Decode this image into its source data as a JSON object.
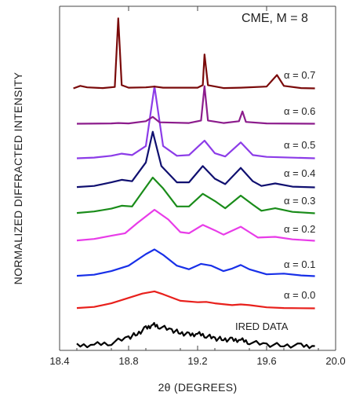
{
  "chart_data": {
    "type": "line",
    "title": "CME, M = 8",
    "xlabel": "2θ (DEGREES)",
    "ylabel": "NORMALIZED DIFFRACTED INTENSITY",
    "xlim": [
      18.4,
      20.0
    ],
    "x_ticks": [
      "18.4",
      "18.8",
      "19.2",
      "19.6",
      "20.0"
    ],
    "y_ticks_shown": false,
    "grid": false,
    "legend": "inline labels at right of each trace",
    "stacked_offset": true,
    "series": [
      {
        "name": "IRED DATA",
        "color": "#000000",
        "noisy": true,
        "points": [
          [
            18.5,
            0.02
          ],
          [
            18.6,
            0.05
          ],
          [
            18.7,
            0.1
          ],
          [
            18.8,
            0.25
          ],
          [
            18.85,
            0.35
          ],
          [
            18.9,
            0.5
          ],
          [
            18.94,
            0.6
          ],
          [
            18.98,
            0.55
          ],
          [
            19.05,
            0.45
          ],
          [
            19.1,
            0.38
          ],
          [
            19.15,
            0.32
          ],
          [
            19.2,
            0.35
          ],
          [
            19.25,
            0.3
          ],
          [
            19.3,
            0.22
          ],
          [
            19.35,
            0.2
          ],
          [
            19.4,
            0.18
          ],
          [
            19.45,
            0.18
          ],
          [
            19.5,
            0.12
          ],
          [
            19.6,
            0.05
          ],
          [
            19.7,
            0.03
          ],
          [
            19.8,
            0.02
          ],
          [
            19.88,
            0.01
          ]
        ]
      },
      {
        "name": "α = 0.0",
        "color": "#e8201c",
        "points": [
          [
            18.5,
            0.02
          ],
          [
            18.6,
            0.05
          ],
          [
            18.7,
            0.15
          ],
          [
            18.8,
            0.3
          ],
          [
            18.88,
            0.42
          ],
          [
            18.95,
            0.48
          ],
          [
            19.0,
            0.4
          ],
          [
            19.1,
            0.22
          ],
          [
            19.2,
            0.18
          ],
          [
            19.25,
            0.19
          ],
          [
            19.3,
            0.15
          ],
          [
            19.4,
            0.1
          ],
          [
            19.45,
            0.12
          ],
          [
            19.5,
            0.1
          ],
          [
            19.6,
            0.04
          ],
          [
            19.7,
            0.02
          ],
          [
            19.88,
            0.01
          ]
        ]
      },
      {
        "name": "α = 0.1",
        "color": "#1830e8",
        "points": [
          [
            18.5,
            0.02
          ],
          [
            18.6,
            0.05
          ],
          [
            18.7,
            0.15
          ],
          [
            18.8,
            0.3
          ],
          [
            18.9,
            0.62
          ],
          [
            18.95,
            0.75
          ],
          [
            19.0,
            0.6
          ],
          [
            19.08,
            0.3
          ],
          [
            19.15,
            0.2
          ],
          [
            19.22,
            0.35
          ],
          [
            19.28,
            0.3
          ],
          [
            19.35,
            0.15
          ],
          [
            19.4,
            0.22
          ],
          [
            19.45,
            0.32
          ],
          [
            19.5,
            0.2
          ],
          [
            19.6,
            0.06
          ],
          [
            19.7,
            0.08
          ],
          [
            19.8,
            0.03
          ],
          [
            19.88,
            0.01
          ]
        ]
      },
      {
        "name": "α = 0.2",
        "color": "#e83ce8",
        "points": [
          [
            18.5,
            0.02
          ],
          [
            18.6,
            0.06
          ],
          [
            18.7,
            0.15
          ],
          [
            18.78,
            0.22
          ],
          [
            18.85,
            0.5
          ],
          [
            18.95,
            0.87
          ],
          [
            19.03,
            0.6
          ],
          [
            19.1,
            0.25
          ],
          [
            19.15,
            0.22
          ],
          [
            19.23,
            0.45
          ],
          [
            19.3,
            0.3
          ],
          [
            19.35,
            0.18
          ],
          [
            19.45,
            0.4
          ],
          [
            19.5,
            0.25
          ],
          [
            19.55,
            0.1
          ],
          [
            19.65,
            0.12
          ],
          [
            19.75,
            0.05
          ],
          [
            19.88,
            0.01
          ]
        ]
      },
      {
        "name": "α = 0.3",
        "color": "#1a8c1a",
        "points": [
          [
            18.5,
            0.02
          ],
          [
            18.6,
            0.06
          ],
          [
            18.7,
            0.14
          ],
          [
            18.76,
            0.22
          ],
          [
            18.82,
            0.2
          ],
          [
            18.88,
            0.6
          ],
          [
            18.94,
            1.0
          ],
          [
            19.0,
            0.7
          ],
          [
            19.08,
            0.2
          ],
          [
            19.15,
            0.2
          ],
          [
            19.23,
            0.55
          ],
          [
            19.3,
            0.35
          ],
          [
            19.36,
            0.15
          ],
          [
            19.45,
            0.5
          ],
          [
            19.52,
            0.25
          ],
          [
            19.57,
            0.08
          ],
          [
            19.65,
            0.15
          ],
          [
            19.75,
            0.05
          ],
          [
            19.88,
            0.01
          ]
        ]
      },
      {
        "name": "α = 0.4",
        "color": "#101070",
        "points": [
          [
            18.5,
            0.02
          ],
          [
            18.6,
            0.05
          ],
          [
            18.7,
            0.15
          ],
          [
            18.76,
            0.22
          ],
          [
            18.82,
            0.18
          ],
          [
            18.9,
            0.7
          ],
          [
            18.94,
            1.55
          ],
          [
            18.99,
            0.6
          ],
          [
            19.08,
            0.15
          ],
          [
            19.15,
            0.15
          ],
          [
            19.23,
            0.6
          ],
          [
            19.3,
            0.25
          ],
          [
            19.36,
            0.1
          ],
          [
            19.45,
            0.55
          ],
          [
            19.52,
            0.18
          ],
          [
            19.57,
            0.05
          ],
          [
            19.65,
            0.12
          ],
          [
            19.75,
            0.03
          ],
          [
            19.88,
            0.01
          ]
        ]
      },
      {
        "name": "α = 0.5",
        "color": "#8c3ce8",
        "points": [
          [
            18.5,
            0.01
          ],
          [
            18.6,
            0.03
          ],
          [
            18.7,
            0.08
          ],
          [
            18.76,
            0.14
          ],
          [
            18.82,
            0.1
          ],
          [
            18.9,
            0.35
          ],
          [
            18.95,
            2.0
          ],
          [
            19.0,
            0.35
          ],
          [
            19.08,
            0.08
          ],
          [
            19.15,
            0.1
          ],
          [
            19.24,
            0.5
          ],
          [
            19.3,
            0.15
          ],
          [
            19.36,
            0.06
          ],
          [
            19.45,
            0.45
          ],
          [
            19.52,
            0.1
          ],
          [
            19.6,
            0.05
          ],
          [
            19.88,
            0.01
          ]
        ]
      },
      {
        "name": "α = 0.6",
        "color": "#8c1c8c",
        "points": [
          [
            18.5,
            0.01
          ],
          [
            18.7,
            0.02
          ],
          [
            18.74,
            0.03
          ],
          [
            18.8,
            0.02
          ],
          [
            18.9,
            0.08
          ],
          [
            18.94,
            0.2
          ],
          [
            18.98,
            0.05
          ],
          [
            19.15,
            0.03
          ],
          [
            19.22,
            0.1
          ],
          [
            19.24,
            1.05
          ],
          [
            19.26,
            0.1
          ],
          [
            19.35,
            0.03
          ],
          [
            19.44,
            0.08
          ],
          [
            19.46,
            0.35
          ],
          [
            19.48,
            0.06
          ],
          [
            19.6,
            0.02
          ],
          [
            19.88,
            0.01
          ]
        ]
      },
      {
        "name": "α = 0.7",
        "color": "#7a0a0a",
        "points": [
          [
            18.48,
            0.01
          ],
          [
            18.52,
            0.08
          ],
          [
            18.56,
            0.04
          ],
          [
            18.65,
            0.02
          ],
          [
            18.72,
            0.05
          ],
          [
            18.74,
            1.95
          ],
          [
            18.76,
            0.1
          ],
          [
            18.8,
            0.03
          ],
          [
            18.9,
            0.04
          ],
          [
            18.95,
            0.06
          ],
          [
            19.0,
            0.03
          ],
          [
            19.2,
            0.03
          ],
          [
            19.23,
            0.1
          ],
          [
            19.24,
            0.95
          ],
          [
            19.26,
            0.1
          ],
          [
            19.35,
            0.02
          ],
          [
            19.45,
            0.03
          ],
          [
            19.6,
            0.06
          ],
          [
            19.66,
            0.38
          ],
          [
            19.7,
            0.08
          ],
          [
            19.8,
            0.02
          ],
          [
            19.88,
            0.01
          ]
        ]
      }
    ]
  }
}
